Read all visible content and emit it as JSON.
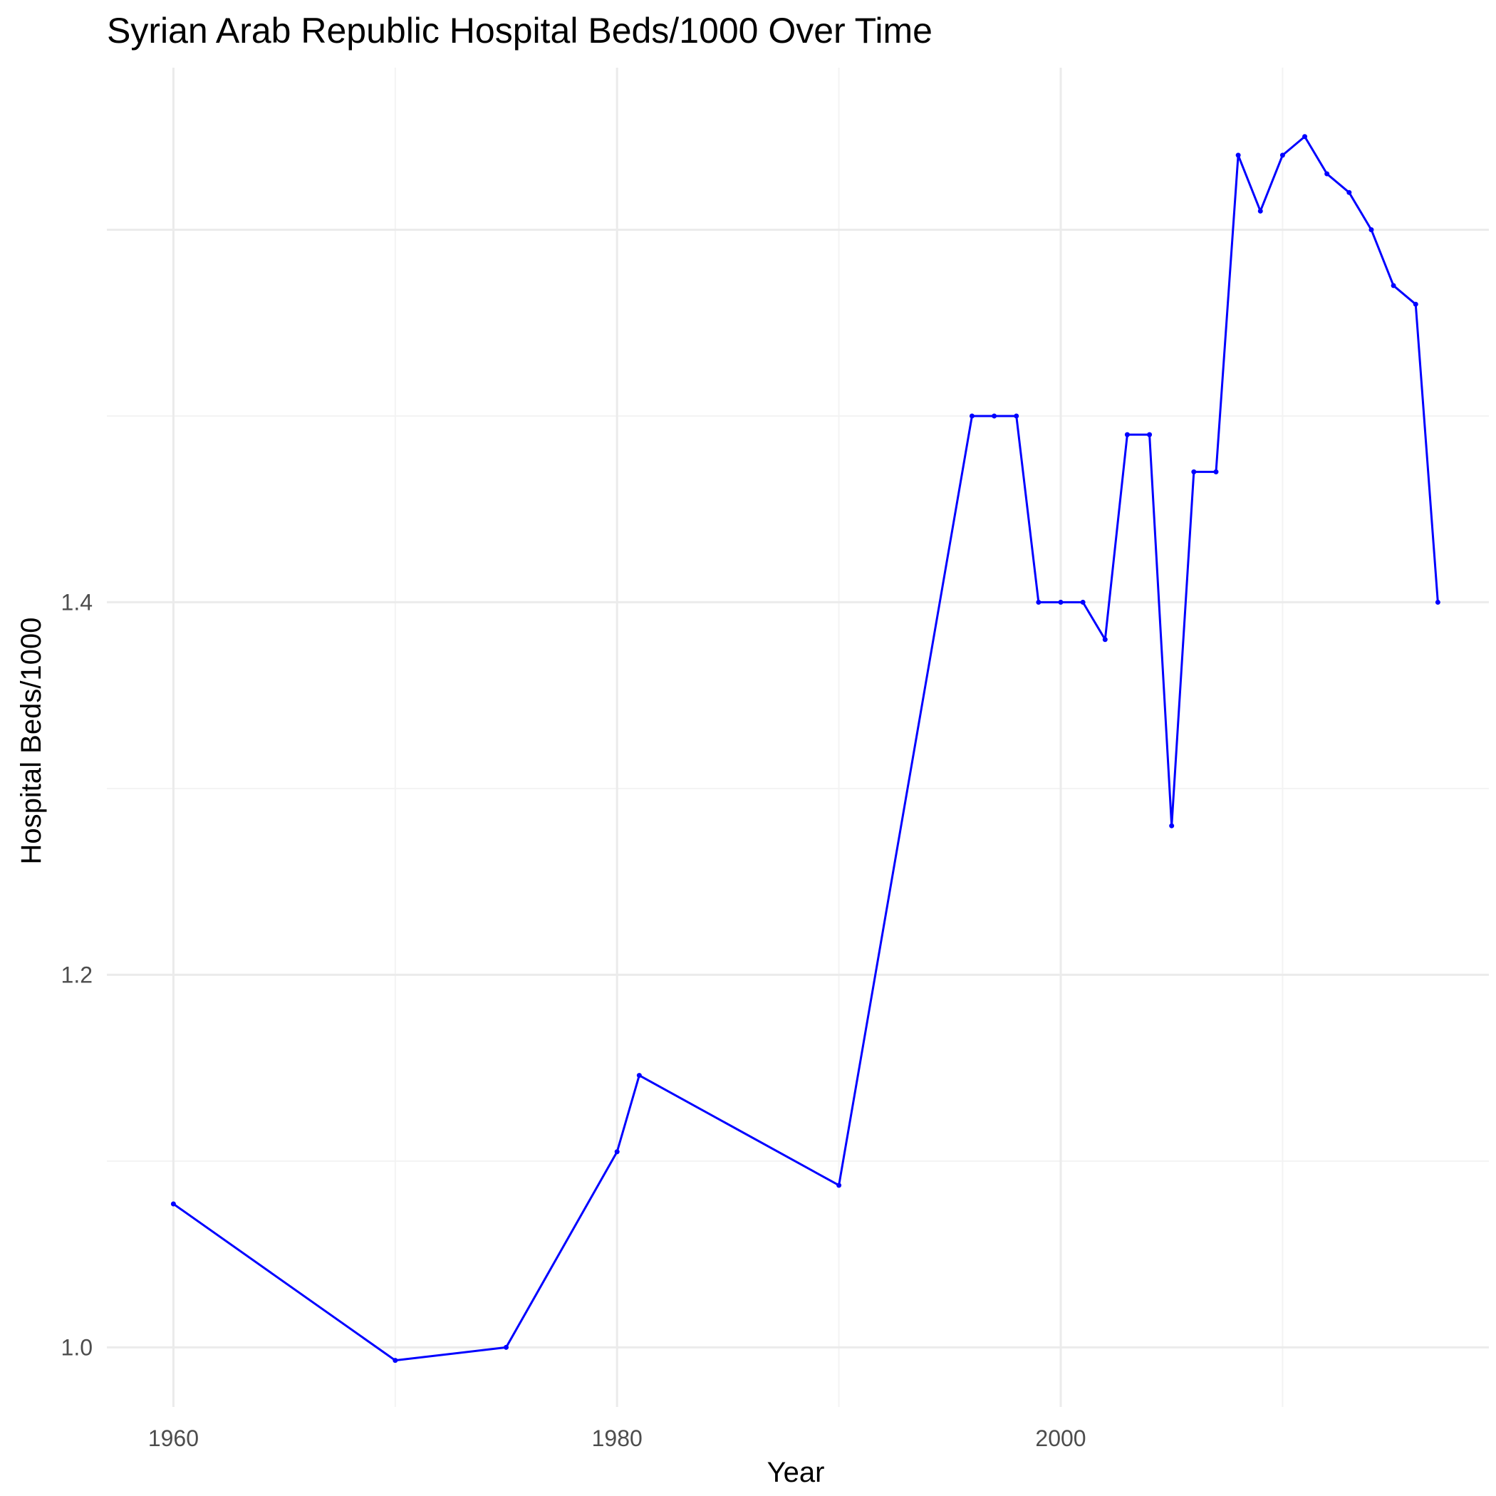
{
  "chart_data": {
    "type": "line",
    "title": "Syrian Arab Republic Hospital Beds/1000 Over Time",
    "xlabel": "Year",
    "ylabel": "Hospital Beds/1000",
    "xlim": [
      1957,
      2019.3
    ],
    "ylim": [
      0.968,
      1.687
    ],
    "x_ticks": [
      1960,
      1980,
      2000
    ],
    "x_tick_labels": [
      "1960",
      "1980",
      "2000"
    ],
    "y_ticks": [
      1.0,
      1.2,
      1.4
    ],
    "y_tick_labels": [
      "1.0",
      "1.2",
      "1.4"
    ],
    "grid": true,
    "legend": "none",
    "colors": {
      "line": "#0000ff",
      "grid_major": "#ebebeb",
      "grid_minor": "#f3f3f3"
    },
    "series": [
      {
        "x": [
          1960,
          1970,
          1975,
          1980,
          1981,
          1990,
          1996,
          1997,
          1998,
          1999,
          2000,
          2001,
          2002,
          2003,
          2004,
          2005,
          2006,
          2007,
          2008,
          2009,
          2010,
          2011,
          2012,
          2013,
          2014,
          2015,
          2016,
          2017
        ],
        "y": [
          1.077,
          0.993,
          1.0,
          1.105,
          1.146,
          1.087,
          1.5,
          1.5,
          1.5,
          1.4,
          1.4,
          1.4,
          1.38,
          1.49,
          1.49,
          1.28,
          1.47,
          1.47,
          1.64,
          1.61,
          1.64,
          1.65,
          1.63,
          1.62,
          1.6,
          1.57,
          1.56,
          1.4
        ]
      }
    ]
  }
}
